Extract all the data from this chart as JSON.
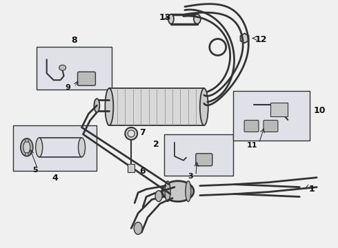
{
  "bg_color": "#f0f0f0",
  "line_color": "#333333",
  "box_bg": "#e0e0e8",
  "label_color": "#111111",
  "figsize": [
    4.9,
    3.6
  ],
  "dpi": 100
}
